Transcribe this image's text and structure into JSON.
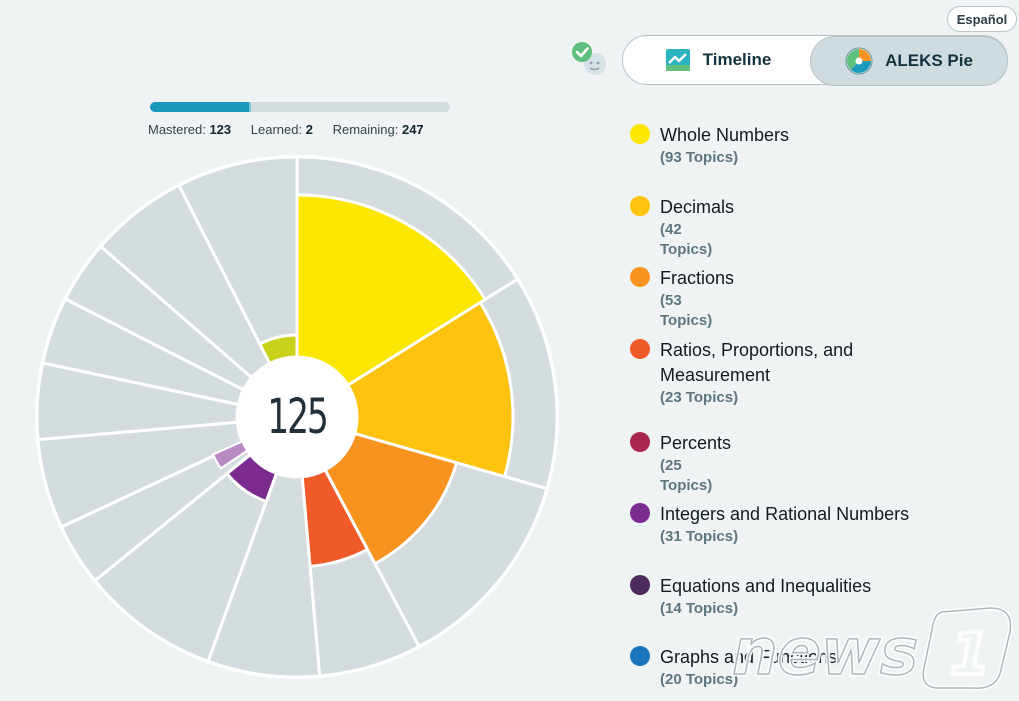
{
  "language_button": {
    "label": "Español"
  },
  "view_toggle": {
    "timeline_label": "Timeline",
    "pie_label": "ALEKS Pie",
    "selected": "ALEKS Pie"
  },
  "progress": {
    "mastered_label": "Mastered:",
    "mastered_value": "123",
    "learned_label": "Learned:",
    "learned_value": "2",
    "remaining_label": "Remaining:",
    "remaining_value": "247",
    "mastered_fraction": 0.331,
    "learned_fraction": 0.005
  },
  "pie": {
    "center_count": "125"
  },
  "legend": [
    {
      "name": "Whole Numbers",
      "topics": "(93 Topics)",
      "color": "#fbe600"
    },
    {
      "name": "Decimals",
      "topics": "(42 Topics)",
      "color": "#fdc30f"
    },
    {
      "name": "Fractions",
      "topics": "(53 Topics)",
      "color": "#f7931e"
    },
    {
      "name": "Ratios, Proportions, and",
      "name_line2": "Measurement",
      "topics": "(23 Topics)",
      "color": "#f05a28"
    },
    {
      "name": "Percents",
      "topics": "(25 Topics)",
      "color": "#a9264e"
    },
    {
      "name": "Integers and Rational Numbers",
      "topics": "(31 Topics)",
      "color": "#7b2b8e"
    },
    {
      "name": "Equations and Inequalities",
      "topics": "(14 Topics)",
      "color": "#4b2a5e"
    },
    {
      "name": "Graphs and Functions",
      "topics": "(20 Topics)",
      "color": "#1b75bc"
    }
  ],
  "watermark": {
    "text": "news1"
  }
}
